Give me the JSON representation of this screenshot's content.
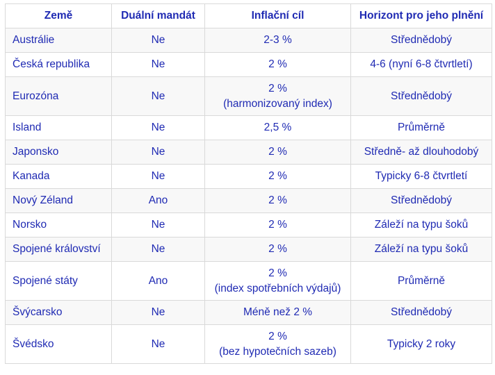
{
  "headers": {
    "country": "Země",
    "dual_mandate": "Duální mandát",
    "inflation_target": "Inflační cíl",
    "horizon": "Horizont pro jeho plnění"
  },
  "rows": [
    {
      "country": "Austrálie",
      "dual": "Ne",
      "target": "2-3 %",
      "target_note": "",
      "horizon": "Střednědobý"
    },
    {
      "country": "Česká republika",
      "dual": "Ne",
      "target": "2 %",
      "target_note": "",
      "horizon": "4-6 (nyní 6-8 čtvrtletí)"
    },
    {
      "country": "Eurozóna",
      "dual": "Ne",
      "target": "2 %",
      "target_note": "(harmonizovaný index)",
      "horizon": "Střednědobý"
    },
    {
      "country": "Island",
      "dual": "Ne",
      "target": "2,5 %",
      "target_note": "",
      "horizon": "Průměrně"
    },
    {
      "country": "Japonsko",
      "dual": "Ne",
      "target": "2 %",
      "target_note": "",
      "horizon": "Středně- až dlouhodobý"
    },
    {
      "country": "Kanada",
      "dual": "Ne",
      "target": "2 %",
      "target_note": "",
      "horizon": "Typicky 6-8 čtvrtletí"
    },
    {
      "country": "Nový Zéland",
      "dual": "Ano",
      "target": "2 %",
      "target_note": "",
      "horizon": "Střednědobý"
    },
    {
      "country": "Norsko",
      "dual": "Ne",
      "target": "2 %",
      "target_note": "",
      "horizon": "Záleží na typu šoků"
    },
    {
      "country": "Spojené království",
      "dual": "Ne",
      "target": "2 %",
      "target_note": "",
      "horizon": "Záleží na typu šoků"
    },
    {
      "country": "Spojené státy",
      "dual": "Ano",
      "target": "2 %",
      "target_note": "(index spotřebních výdajů)",
      "horizon": "Průměrně"
    },
    {
      "country": "Švýcarsko",
      "dual": "Ne",
      "target": "Méně než 2 %",
      "target_note": "",
      "horizon": "Střednědobý"
    },
    {
      "country": "Švédsko",
      "dual": "Ne",
      "target": "2 %",
      "target_note": "(bez hypotečních sazeb)",
      "horizon": "Typicky 2 roky"
    }
  ]
}
